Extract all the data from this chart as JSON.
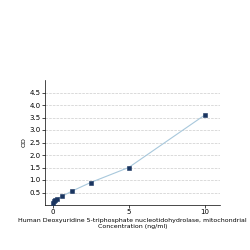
{
  "x": [
    0,
    0.078,
    0.156,
    0.3125,
    0.625,
    1.25,
    2.5,
    5,
    10
  ],
  "y": [
    0.1,
    0.15,
    0.2,
    0.25,
    0.35,
    0.55,
    0.9,
    1.5,
    3.6
  ],
  "line_color": "#a8c8dc",
  "marker_color": "#1a3560",
  "marker_size": 3,
  "xlabel_line1": "Human Deoxyuridine 5-triphosphate nucleotidohydrolase, mitochondrial",
  "xlabel_line2": "Concentration (ng/ml)",
  "ylabel": "OD",
  "xlim": [
    -0.5,
    11
  ],
  "ylim": [
    0,
    5
  ],
  "yticks": [
    0.5,
    1,
    1.5,
    2,
    2.5,
    3,
    3.5,
    4,
    4.5
  ],
  "xticks": [
    0,
    5,
    10
  ],
  "grid_color": "#cccccc",
  "bg_color": "#ffffff",
  "label_fontsize": 4.5,
  "tick_fontsize": 5
}
